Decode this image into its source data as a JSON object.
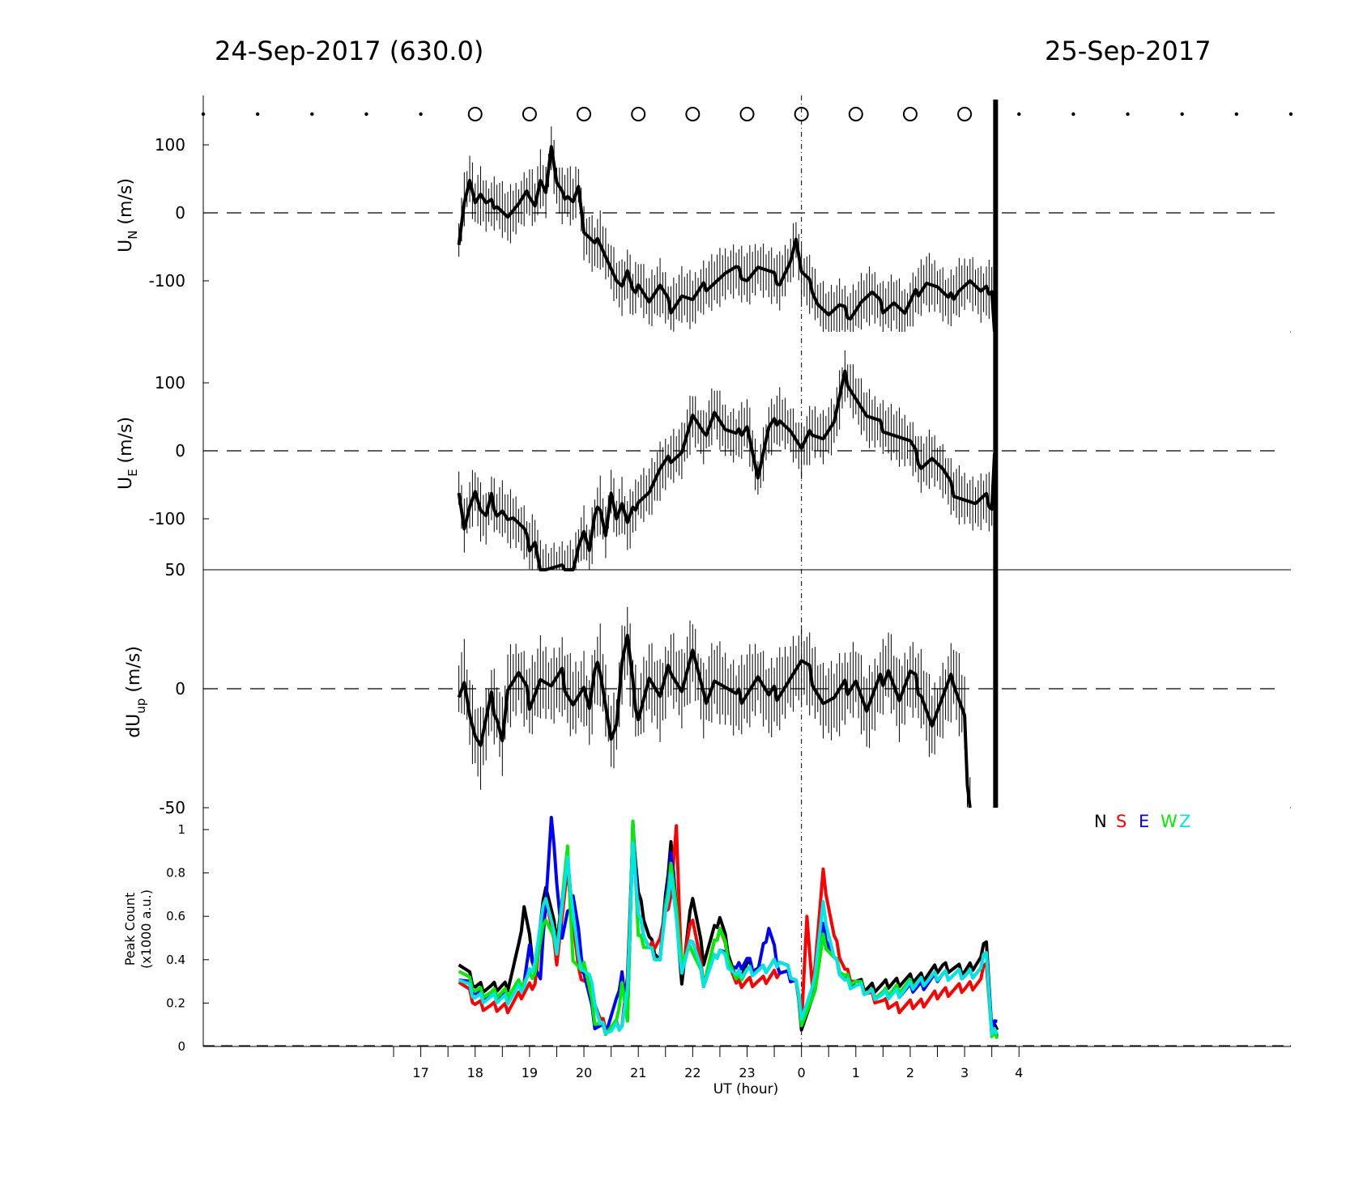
{
  "header": {
    "left_title": "24-Sep-2017 (630.0)",
    "right_title": "25-Sep-2017"
  },
  "colors": {
    "N": "#000000",
    "S": "#ff0000",
    "E": "#0000ff",
    "W": "#00ee00",
    "Z": "#00e5e5"
  },
  "chart_data": [
    {
      "type": "line",
      "panel": "UN",
      "ylabel_main": "U",
      "ylabel_sub": "N",
      "ylabel_unit": "(m/s)",
      "yticks": [
        100,
        0,
        -100
      ],
      "ylim": [
        -175,
        175
      ],
      "xlim": [
        13,
        33
      ],
      "marker_row": {
        "open_circle_hours": [
          18,
          19,
          20,
          21,
          22,
          23,
          24,
          25,
          26,
          27
        ],
        "dot_hours": [
          13,
          14,
          15,
          16,
          17,
          28,
          29,
          30,
          31,
          32,
          33
        ]
      },
      "series": [
        {
          "color": "#000000",
          "error": 35,
          "x": [
            17.7,
            17.8,
            17.9,
            18.0,
            18.1,
            18.2,
            18.4,
            18.6,
            18.8,
            19.0,
            19.1,
            19.2,
            19.3,
            19.4,
            19.5,
            19.6,
            19.7,
            19.8,
            19.9,
            20.0,
            20.1,
            20.2,
            20.3,
            20.4,
            20.5,
            20.6,
            20.7,
            20.8,
            20.9,
            21.0,
            21.2,
            21.4,
            21.6,
            21.8,
            22.0,
            22.2,
            22.4,
            22.6,
            22.8,
            23.0,
            23.2,
            23.4,
            23.6,
            23.8,
            23.9,
            24.0,
            24.1,
            24.2,
            24.3,
            24.5,
            24.7,
            24.9,
            25.1,
            25.3,
            25.5,
            25.7,
            25.9,
            26.1,
            26.3,
            26.5,
            26.7,
            26.9,
            27.1,
            27.3,
            27.5,
            27.55
          ],
          "y": [
            -40,
            20,
            50,
            15,
            25,
            10,
            15,
            -5,
            10,
            30,
            15,
            50,
            30,
            95,
            40,
            25,
            30,
            20,
            40,
            -30,
            -40,
            -50,
            -40,
            -60,
            -80,
            -100,
            -110,
            -90,
            -120,
            -100,
            -130,
            -110,
            -140,
            -120,
            -130,
            -110,
            -100,
            -90,
            -85,
            -95,
            -80,
            -90,
            -100,
            -70,
            -40,
            -90,
            -100,
            -110,
            -130,
            -150,
            -140,
            -150,
            -130,
            -120,
            -140,
            -130,
            -150,
            -120,
            -100,
            -110,
            -130,
            -110,
            -100,
            -120,
            -110,
            -175
          ]
        }
      ]
    },
    {
      "type": "line",
      "panel": "UE",
      "ylabel_main": "U",
      "ylabel_sub": "E",
      "ylabel_unit": "(m/s)",
      "yticks": [
        100,
        0,
        -100
      ],
      "ylim": [
        -175,
        175
      ],
      "xlim": [
        13,
        33
      ],
      "series": [
        {
          "color": "#000000",
          "error": 35,
          "x": [
            17.7,
            17.8,
            17.9,
            18.0,
            18.1,
            18.2,
            18.3,
            18.4,
            18.5,
            18.6,
            18.7,
            18.8,
            18.9,
            19.0,
            19.1,
            19.2,
            19.4,
            19.6,
            19.8,
            19.9,
            20.0,
            20.1,
            20.2,
            20.3,
            20.4,
            20.5,
            20.6,
            20.7,
            20.8,
            20.9,
            21.0,
            21.2,
            21.4,
            21.6,
            21.8,
            22.0,
            22.2,
            22.4,
            22.6,
            22.8,
            23.0,
            23.2,
            23.4,
            23.6,
            23.8,
            24.0,
            24.2,
            24.4,
            24.6,
            24.8,
            25.0,
            25.2,
            25.4,
            25.6,
            25.8,
            26.0,
            26.2,
            26.4,
            26.6,
            26.8,
            27.0,
            27.2,
            27.4,
            27.5,
            27.55
          ],
          "y": [
            -55,
            -110,
            -80,
            -60,
            -90,
            -100,
            -70,
            -90,
            -85,
            -100,
            -100,
            -110,
            -120,
            -140,
            -130,
            -175,
            -175,
            -175,
            -175,
            -140,
            -120,
            -150,
            -100,
            -80,
            -120,
            -60,
            -100,
            -80,
            -110,
            -90,
            -70,
            -60,
            -30,
            -10,
            0,
            50,
            20,
            60,
            30,
            20,
            40,
            -40,
            30,
            50,
            30,
            0,
            30,
            20,
            40,
            110,
            80,
            50,
            40,
            30,
            20,
            10,
            -20,
            -10,
            -30,
            -60,
            -70,
            -80,
            -70,
            -80,
            0
          ]
        }
      ]
    },
    {
      "type": "line",
      "panel": "dUup",
      "ylabel_main": "dU",
      "ylabel_sub": "up",
      "ylabel_unit": "(m/s)",
      "yticks": [
        50,
        0,
        -50
      ],
      "ylim": [
        -50,
        50
      ],
      "xlim": [
        13,
        33
      ],
      "series": [
        {
          "color": "#000000",
          "error": 14,
          "x": [
            17.7,
            17.8,
            17.9,
            18.0,
            18.1,
            18.2,
            18.3,
            18.4,
            18.5,
            18.6,
            18.8,
            19.0,
            19.2,
            19.4,
            19.6,
            19.8,
            20.0,
            20.1,
            20.2,
            20.3,
            20.4,
            20.5,
            20.6,
            20.7,
            20.8,
            20.9,
            21.0,
            21.2,
            21.4,
            21.6,
            21.8,
            22.0,
            22.2,
            22.4,
            22.6,
            22.8,
            23.0,
            23.2,
            23.4,
            23.6,
            23.8,
            24.0,
            24.2,
            24.4,
            24.6,
            24.8,
            25.0,
            25.2,
            25.4,
            25.6,
            25.8,
            26.0,
            26.2,
            26.4,
            26.6,
            26.8,
            27.0,
            27.05,
            27.1
          ],
          "y": [
            0,
            5,
            -10,
            -20,
            -25,
            -15,
            -5,
            -10,
            -20,
            0,
            5,
            -5,
            5,
            0,
            5,
            -5,
            0,
            -10,
            5,
            10,
            -5,
            -20,
            -15,
            10,
            20,
            0,
            -10,
            5,
            -5,
            10,
            0,
            15,
            -5,
            5,
            0,
            -5,
            0,
            5,
            -5,
            0,
            5,
            10,
            5,
            -5,
            -5,
            0,
            5,
            -10,
            0,
            10,
            -5,
            5,
            0,
            -15,
            -5,
            5,
            -10,
            -40,
            -50
          ]
        }
      ]
    },
    {
      "type": "line",
      "panel": "PeakCount",
      "ylabel_line1": "Peak Count",
      "ylabel_line2": "(x1000 a.u.)",
      "xlabel": "UT (hour)",
      "yticks": [
        1,
        0.8,
        0.6,
        0.4,
        0.2,
        0
      ],
      "ylim": [
        0,
        1.05
      ],
      "xlim": [
        13,
        33
      ],
      "x_tick_hours": [
        17,
        18,
        19,
        20,
        21,
        22,
        23,
        24,
        25,
        26,
        27,
        28
      ],
      "x_tick_labels": [
        "17",
        "18",
        "19",
        "20",
        "21",
        "22",
        "23",
        "0",
        "1",
        "2",
        "3",
        "4"
      ],
      "legend": [
        "N",
        "S",
        "E",
        "W",
        "Z"
      ],
      "legend_position": "top-right",
      "series": [
        {
          "name": "N",
          "color": "#000000",
          "x": [
            17.7,
            18.0,
            18.3,
            18.6,
            18.8,
            18.9,
            19.1,
            19.3,
            19.5,
            19.7,
            19.9,
            20.1,
            20.3,
            20.5,
            20.7,
            20.8,
            20.9,
            21.0,
            21.2,
            21.4,
            21.6,
            21.8,
            22.0,
            22.2,
            22.5,
            22.8,
            23.0,
            23.3,
            23.6,
            23.9,
            24.0,
            24.2,
            24.4,
            24.6,
            24.8,
            25.0,
            25.2,
            25.5,
            25.8,
            26.2,
            26.6,
            27.0,
            27.3,
            27.4,
            27.5,
            27.6
          ],
          "y": [
            0.4,
            0.28,
            0.27,
            0.28,
            0.45,
            0.65,
            0.35,
            0.75,
            0.5,
            0.85,
            0.4,
            0.3,
            0.12,
            0.08,
            0.1,
            0.3,
            1.0,
            0.7,
            0.5,
            0.4,
            0.95,
            0.3,
            0.7,
            0.4,
            0.6,
            0.3,
            0.38,
            0.35,
            0.4,
            0.3,
            0.1,
            0.2,
            0.5,
            0.4,
            0.3,
            0.3,
            0.27,
            0.28,
            0.3,
            0.32,
            0.37,
            0.35,
            0.4,
            0.5,
            0.07,
            0.1
          ]
        },
        {
          "name": "S",
          "color": "#ff0000",
          "x": [
            17.7,
            18.0,
            18.3,
            18.6,
            18.9,
            19.1,
            19.3,
            19.5,
            19.7,
            19.9,
            20.1,
            20.3,
            20.5,
            20.7,
            20.8,
            20.9,
            21.0,
            21.2,
            21.4,
            21.6,
            21.7,
            21.8,
            22.0,
            22.2,
            22.5,
            22.8,
            23.0,
            23.3,
            23.6,
            23.9,
            24.0,
            24.1,
            24.2,
            24.4,
            24.6,
            24.8,
            25.0,
            25.2,
            25.5,
            25.8,
            26.2,
            26.6,
            27.0,
            27.3,
            27.4,
            27.5,
            27.6
          ],
          "y": [
            0.32,
            0.2,
            0.18,
            0.18,
            0.25,
            0.3,
            0.7,
            0.4,
            0.8,
            0.35,
            0.28,
            0.12,
            0.08,
            0.1,
            0.28,
            0.95,
            0.6,
            0.45,
            0.5,
            0.7,
            1.0,
            0.35,
            0.6,
            0.3,
            0.55,
            0.28,
            0.3,
            0.3,
            0.35,
            0.3,
            0.12,
            0.6,
            0.25,
            0.8,
            0.5,
            0.35,
            0.3,
            0.25,
            0.2,
            0.18,
            0.2,
            0.25,
            0.27,
            0.3,
            0.4,
            0.05,
            0.07
          ]
        },
        {
          "name": "E",
          "color": "#0000ff",
          "x": [
            17.7,
            18.0,
            18.3,
            18.6,
            18.9,
            19.0,
            19.2,
            19.4,
            19.6,
            19.8,
            20.0,
            20.2,
            20.4,
            20.6,
            20.7,
            20.8,
            20.9,
            21.0,
            21.2,
            21.4,
            21.6,
            21.8,
            22.0,
            22.2,
            22.5,
            22.8,
            23.0,
            23.2,
            23.4,
            23.6,
            23.9,
            24.0,
            24.2,
            24.4,
            24.6,
            24.8,
            25.0,
            25.2,
            25.5,
            25.8,
            26.2,
            26.6,
            27.0,
            27.3,
            27.4,
            27.5,
            27.6
          ],
          "y": [
            0.33,
            0.25,
            0.22,
            0.24,
            0.3,
            0.45,
            0.3,
            1.05,
            0.5,
            0.7,
            0.35,
            0.1,
            0.08,
            0.2,
            0.35,
            0.1,
            1.05,
            0.6,
            0.45,
            0.4,
            0.9,
            0.35,
            0.5,
            0.3,
            0.45,
            0.35,
            0.4,
            0.35,
            0.55,
            0.35,
            0.3,
            0.12,
            0.2,
            0.55,
            0.4,
            0.32,
            0.3,
            0.25,
            0.24,
            0.25,
            0.28,
            0.33,
            0.33,
            0.35,
            0.45,
            0.06,
            0.14
          ]
        },
        {
          "name": "W",
          "color": "#00ee00",
          "x": [
            17.7,
            18.0,
            18.3,
            18.6,
            18.9,
            19.1,
            19.3,
            19.5,
            19.7,
            19.8,
            19.9,
            20.0,
            20.2,
            20.4,
            20.6,
            20.7,
            20.8,
            20.9,
            21.0,
            21.2,
            21.4,
            21.6,
            21.8,
            22.0,
            22.2,
            22.5,
            22.8,
            23.0,
            23.3,
            23.6,
            23.9,
            24.0,
            24.2,
            24.4,
            24.6,
            24.8,
            25.0,
            25.2,
            25.5,
            25.8,
            26.2,
            26.6,
            27.0,
            27.3,
            27.4,
            27.5,
            27.6
          ],
          "y": [
            0.37,
            0.26,
            0.24,
            0.25,
            0.3,
            0.35,
            0.6,
            0.45,
            0.9,
            0.4,
            0.35,
            0.4,
            0.12,
            0.08,
            0.1,
            0.3,
            0.1,
            1.05,
            0.5,
            0.45,
            0.4,
            0.85,
            0.4,
            0.45,
            0.3,
            0.55,
            0.3,
            0.35,
            0.35,
            0.4,
            0.3,
            0.12,
            0.2,
            0.5,
            0.4,
            0.32,
            0.3,
            0.25,
            0.24,
            0.27,
            0.3,
            0.33,
            0.33,
            0.35,
            0.45,
            0.04,
            0.06
          ]
        },
        {
          "name": "Z",
          "color": "#00e5e5",
          "x": [
            17.7,
            18.0,
            18.3,
            18.6,
            18.9,
            19.1,
            19.3,
            19.5,
            19.7,
            19.9,
            20.1,
            20.3,
            20.5,
            20.7,
            20.8,
            20.9,
            21.0,
            21.2,
            21.4,
            21.6,
            21.8,
            22.0,
            22.2,
            22.5,
            22.8,
            23.0,
            23.3,
            23.6,
            23.9,
            24.0,
            24.2,
            24.4,
            24.6,
            24.8,
            25.0,
            25.2,
            25.5,
            25.8,
            26.2,
            26.6,
            27.0,
            27.3,
            27.4,
            27.5,
            27.6
          ],
          "y": [
            0.33,
            0.23,
            0.22,
            0.22,
            0.28,
            0.4,
            0.7,
            0.45,
            0.85,
            0.4,
            0.32,
            0.1,
            0.07,
            0.1,
            0.25,
            0.95,
            0.6,
            0.45,
            0.4,
            0.8,
            0.35,
            0.5,
            0.3,
            0.45,
            0.32,
            0.35,
            0.35,
            0.4,
            0.3,
            0.15,
            0.25,
            0.65,
            0.4,
            0.3,
            0.28,
            0.25,
            0.23,
            0.25,
            0.3,
            0.33,
            0.33,
            0.35,
            0.45,
            0.05,
            0.08
          ]
        }
      ]
    }
  ]
}
